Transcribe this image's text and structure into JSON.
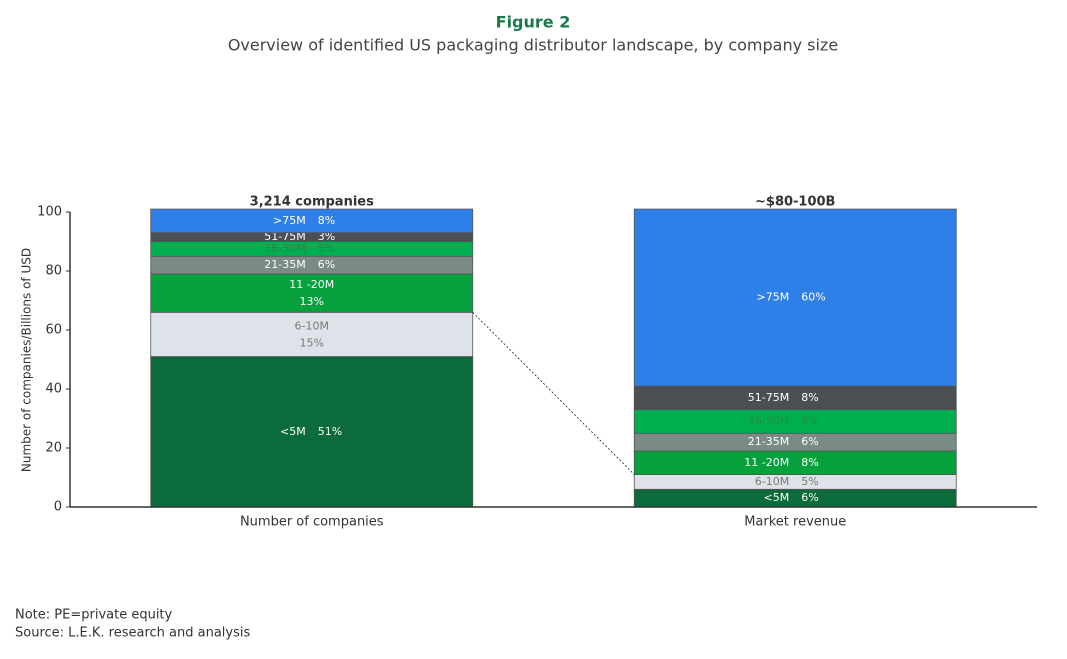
{
  "chart_data": {
    "type": "stacked_bar",
    "title": "Figure 2",
    "subtitle": "Overview of identified US packaging distributor landscape, by company size",
    "y_label": "Number of companies/Billions of USD",
    "categories": [
      "Number of companies",
      "Market revenue"
    ],
    "totals": [
      "3,214 companies",
      "~$80-100B"
    ],
    "ylim": [
      0,
      100
    ],
    "yticks": [
      0,
      20,
      40,
      60,
      80,
      100
    ],
    "series": [
      {
        "name": "<5M",
        "color": "#0b6b3a",
        "text_color": "#ffffff",
        "values": [
          51,
          6
        ],
        "value_labels": [
          "51%",
          "6%"
        ]
      },
      {
        "name": "6-10M",
        "color": "#dde3e8",
        "text_color": "#7a7a7a",
        "values": [
          15,
          5
        ],
        "value_labels": [
          "15%",
          "5%"
        ]
      },
      {
        "name": "11 -20M",
        "color": "#06a03c",
        "text_color": "#ffffff",
        "values": [
          13,
          8
        ],
        "value_labels": [
          "13%",
          "8%"
        ]
      },
      {
        "name": "21-35M",
        "color": "#7a8a84",
        "text_color": "#ffffff",
        "values": [
          6,
          6
        ],
        "value_labels": [
          "6%",
          "6%"
        ]
      },
      {
        "name": "36-50M",
        "color": "#00b050",
        "text_color": "#1e8a44",
        "values": [
          5,
          8
        ],
        "value_labels": [
          "5%",
          "8%"
        ]
      },
      {
        "name": "51-75M",
        "color": "#4b4f54",
        "text_color": "#ffffff",
        "values": [
          3,
          8
        ],
        "value_labels": [
          "3%",
          "8%"
        ]
      },
      {
        "name": ">75M",
        "color": "#2f7fe8",
        "text_color": "#ffffff",
        "values": [
          8,
          60
        ],
        "value_labels": [
          "8%",
          "60%"
        ]
      }
    ],
    "notes": [
      "Note: PE=private equity",
      "Source: L.E.K. research and analysis"
    ]
  }
}
